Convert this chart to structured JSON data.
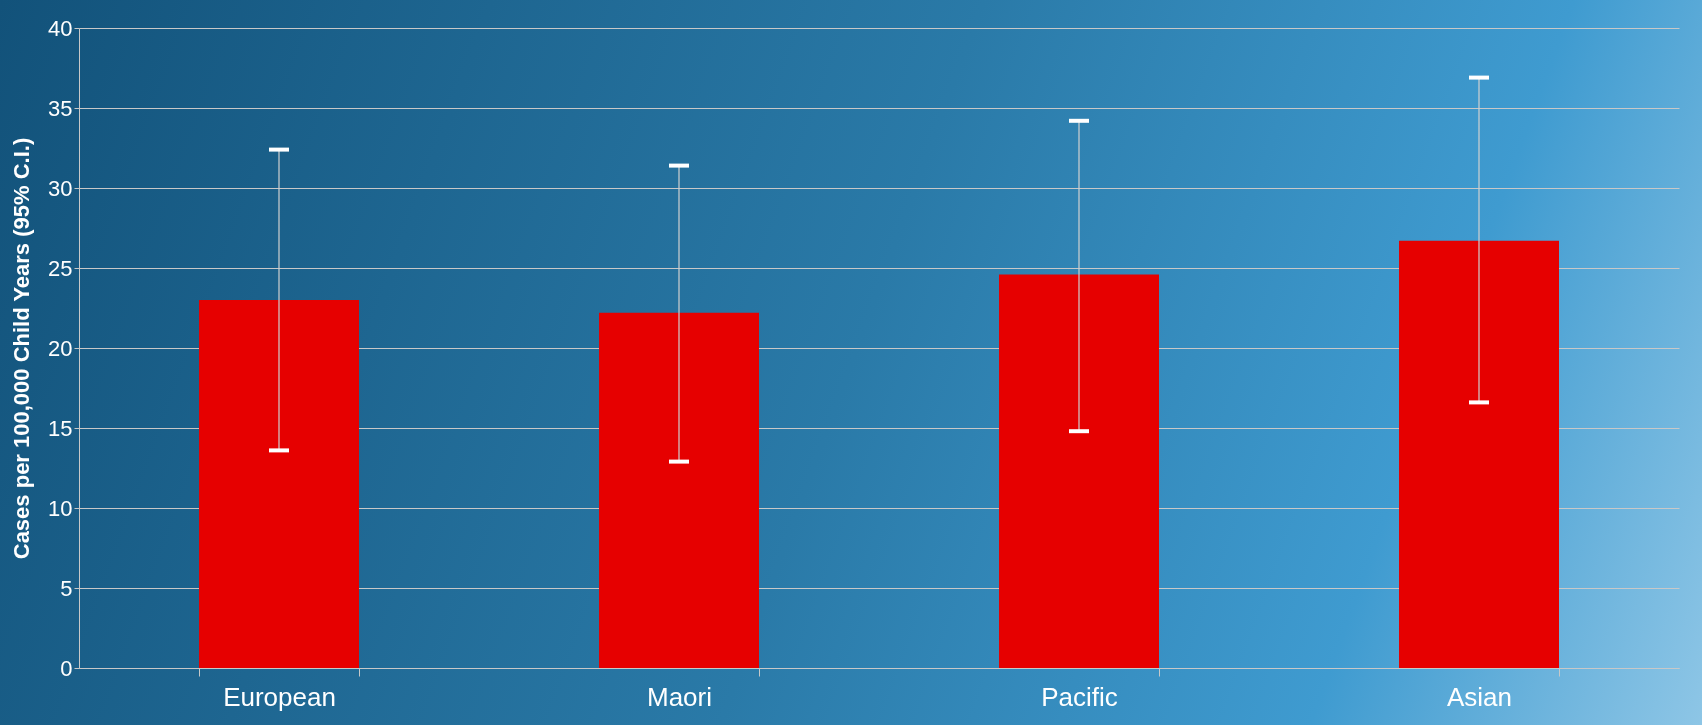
{
  "chart_data": {
    "type": "bar",
    "ylabel": "Cases per 100,000 Child Years  (95% C.I.)",
    "categories": [
      "European",
      "Maori",
      "Pacific",
      "Asian"
    ],
    "values": [
      23.0,
      22.2,
      24.6,
      26.7
    ],
    "errors": [
      [
        13.6,
        32.4
      ],
      [
        12.9,
        31.4
      ],
      [
        14.8,
        34.2
      ],
      [
        16.6,
        36.9
      ]
    ],
    "color": "#e60000",
    "ylim": [
      0,
      40
    ],
    "yticks": [
      0,
      5,
      10,
      15,
      20,
      25,
      30,
      35,
      40
    ],
    "grid": true
  }
}
